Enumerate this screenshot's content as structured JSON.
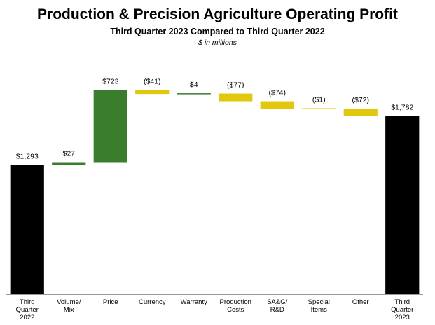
{
  "title": "Production & Precision Agriculture Operating Profit",
  "subtitle": "Third Quarter 2023 Compared to Third Quarter 2022",
  "unit_note": "$ in millions",
  "colors": {
    "total": "#000000",
    "increase": "#3a7d2c",
    "decrease": "#e2c80c",
    "axis": "#999999"
  },
  "chart_data": {
    "type": "bar",
    "subtype": "waterfall",
    "ylim": [
      0,
      2300
    ],
    "bars": [
      {
        "category": [
          "Third",
          "Quarter",
          "2022"
        ],
        "kind": "total",
        "value": 1293,
        "label": "$1,293"
      },
      {
        "category": [
          "Volume/",
          "Mix"
        ],
        "kind": "increase",
        "value": 27,
        "label": "$27"
      },
      {
        "category": [
          "Price"
        ],
        "kind": "increase",
        "value": 723,
        "label": "$723"
      },
      {
        "category": [
          "Currency"
        ],
        "kind": "decrease",
        "value": -41,
        "label": "($41)"
      },
      {
        "category": [
          "Warranty"
        ],
        "kind": "increase",
        "value": 4,
        "label": "$4"
      },
      {
        "category": [
          "Production",
          "Costs"
        ],
        "kind": "decrease",
        "value": -77,
        "label": "($77)"
      },
      {
        "category": [
          "SA&G/",
          "R&D"
        ],
        "kind": "decrease",
        "value": -74,
        "label": "($74)"
      },
      {
        "category": [
          "Special",
          "Items"
        ],
        "kind": "decrease",
        "value": -1,
        "label": "($1)"
      },
      {
        "category": [
          "Other"
        ],
        "kind": "decrease",
        "value": -72,
        "label": "($72)"
      },
      {
        "category": [
          "Third",
          "Quarter",
          "2023"
        ],
        "kind": "total",
        "value": 1782,
        "label": "$1,782"
      }
    ]
  }
}
